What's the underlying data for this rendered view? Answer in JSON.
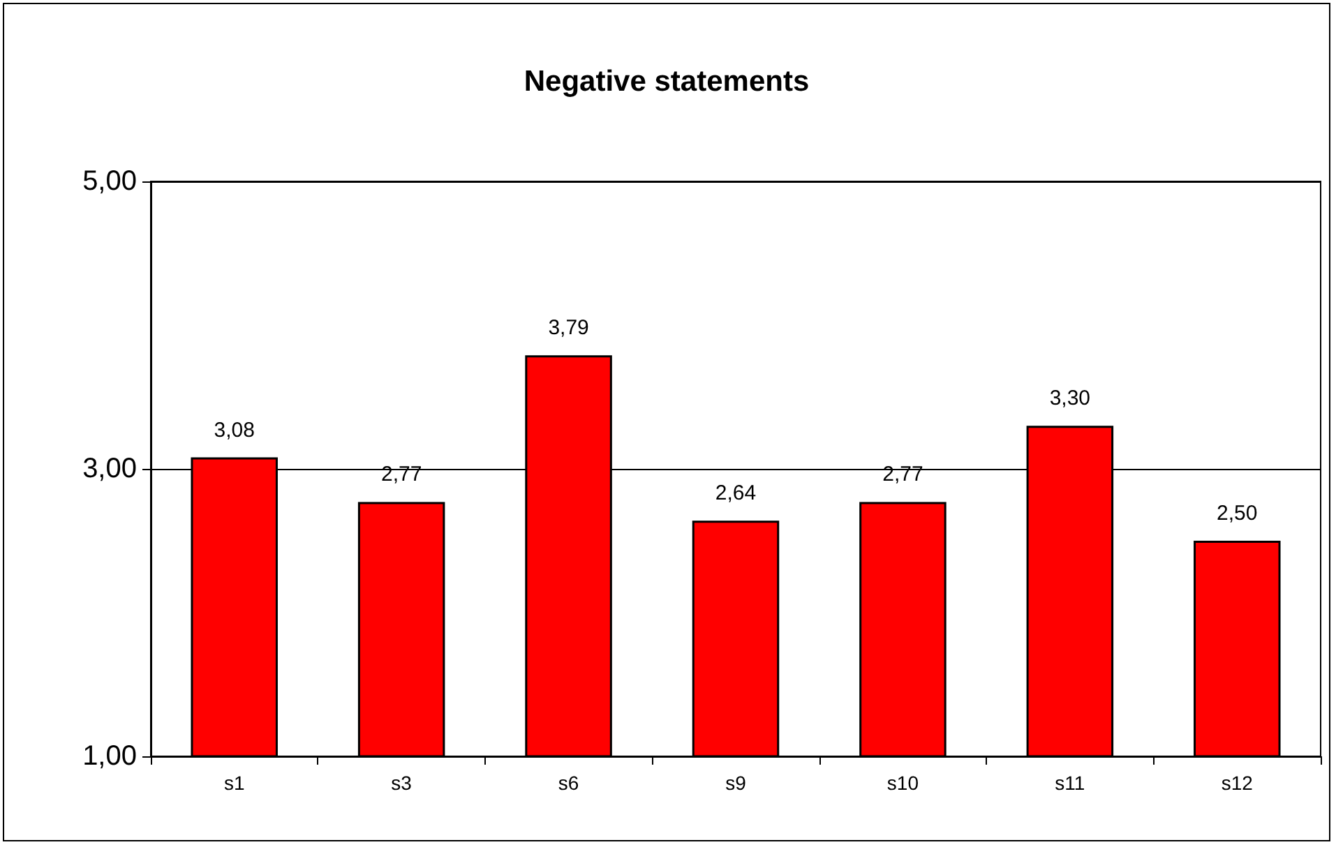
{
  "chart_data": {
    "type": "bar",
    "title": "Negative statements",
    "categories": [
      "s1",
      "s3",
      "s6",
      "s9",
      "s10",
      "s11",
      "s12"
    ],
    "series": [
      {
        "color": "#ff0000",
        "values": [
          3.08,
          2.77,
          3.79,
          2.64,
          2.77,
          3.3,
          2.5
        ],
        "value_labels": [
          "3,08",
          "2,77",
          "3,79",
          "2,64",
          "2,77",
          "3,30",
          "2,50"
        ]
      }
    ],
    "ylim": [
      1,
      5
    ],
    "yticks": [
      {
        "value": 1,
        "label": "1,00"
      },
      {
        "value": 3,
        "label": "3,00"
      },
      {
        "value": 5,
        "label": "5,00"
      }
    ],
    "grid": "y"
  }
}
